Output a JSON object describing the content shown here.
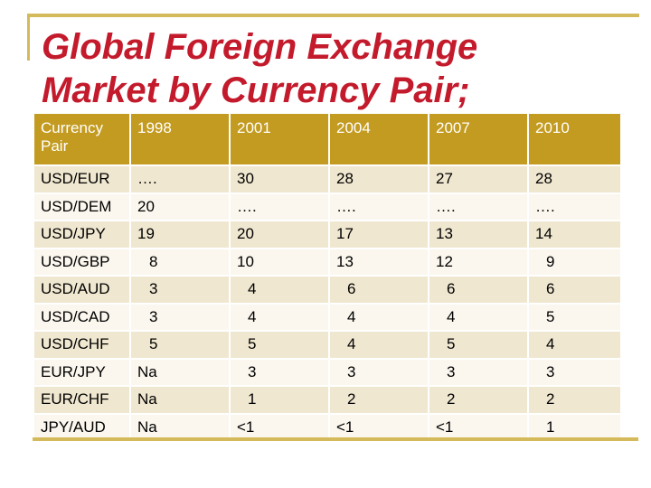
{
  "title": {
    "line1": "Global Foreign Exchange",
    "line2": "Market by Currency Pair;"
  },
  "table": {
    "header": [
      "Currency Pair",
      "1998",
      "2001",
      "2004",
      "2007",
      "2010"
    ],
    "rows": [
      [
        "USD/EUR",
        "….",
        "30",
        "28",
        "27",
        "28"
      ],
      [
        "USD/DEM",
        "20",
        "….",
        "….",
        "….",
        "…."
      ],
      [
        "USD/JPY",
        "19",
        "20",
        "17",
        "13",
        "14"
      ],
      [
        "USD/GBP",
        "8",
        "10",
        "13",
        "12",
        "9"
      ],
      [
        "USD/AUD",
        "3",
        "4",
        "6",
        "6",
        "6"
      ],
      [
        "USD/CAD",
        "3",
        "4",
        "4",
        "4",
        "5"
      ],
      [
        "USD/CHF",
        "5",
        "5",
        "4",
        "5",
        "4"
      ],
      [
        "EUR/JPY",
        "Na",
        "3",
        "3",
        "3",
        "3"
      ],
      [
        "EUR/CHF",
        "Na",
        "1",
        "2",
        "2",
        "2"
      ],
      [
        "JPY/AUD",
        "Na",
        "<1",
        "<1",
        "<1",
        "1"
      ]
    ]
  },
  "colors": {
    "title": "#c31a2c",
    "header_bg": "#c39b20",
    "row_odd": "#f0e7d0",
    "row_even": "#fbf7ee",
    "frame": "#d4ba5a"
  }
}
